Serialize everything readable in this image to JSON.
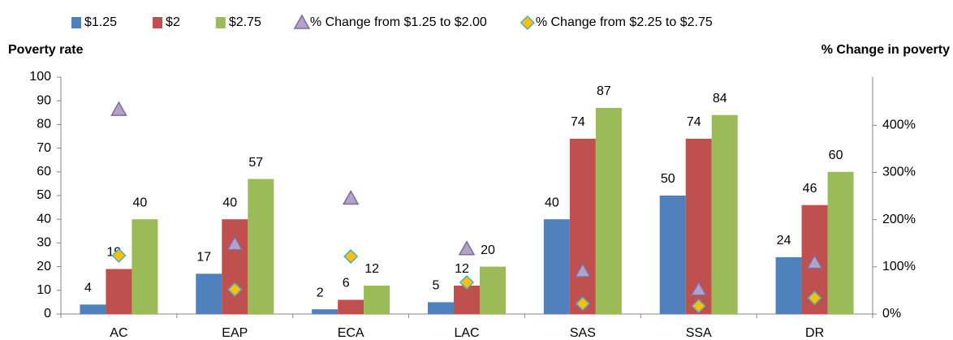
{
  "chart_data": {
    "type": "bar",
    "y_label": "Poverty rate",
    "y2_label": "% Change in poverty",
    "categories": [
      "AC",
      "EAP",
      "ECA",
      "LAC",
      "SAS",
      "SSA",
      "DR"
    ],
    "series": [
      {
        "name": "$1.25",
        "color": "#4f81bd",
        "values": [
          4,
          17,
          2,
          5,
          40,
          50,
          24
        ]
      },
      {
        "name": "$2",
        "color": "#c0504d",
        "values": [
          19,
          40,
          6,
          12,
          74,
          74,
          46
        ]
      },
      {
        "name": "$2.75",
        "color": "#9bbb59",
        "values": [
          40,
          57,
          12,
          20,
          87,
          84,
          60
        ]
      },
      {
        "name": "% Change from $1.25 to $2.00",
        "color": "#b3a2c7",
        "axis": "y2",
        "marker": "triangle",
        "values": [
          433,
          148,
          245,
          138,
          91,
          52,
          109
        ]
      },
      {
        "name": "% Change from $2.25 to $2.75",
        "color": "#ffc000",
        "axis": "y2",
        "marker": "diamond",
        "values": [
          124,
          52,
          122,
          67,
          22,
          17,
          34
        ]
      }
    ],
    "ylim": [
      0,
      100
    ],
    "yticks": [
      0,
      10,
      20,
      30,
      40,
      50,
      60,
      70,
      80,
      90,
      100
    ],
    "y2lim": [
      0,
      502
    ],
    "y2ticks": [
      {
        "value": 0,
        "label": "0%"
      },
      {
        "value": 100,
        "label": "100%"
      },
      {
        "value": 200,
        "label": "200%"
      },
      {
        "value": 300,
        "label": "300%"
      },
      {
        "value": 400,
        "label": "400%"
      }
    ],
    "legend": "top",
    "grid": false
  }
}
